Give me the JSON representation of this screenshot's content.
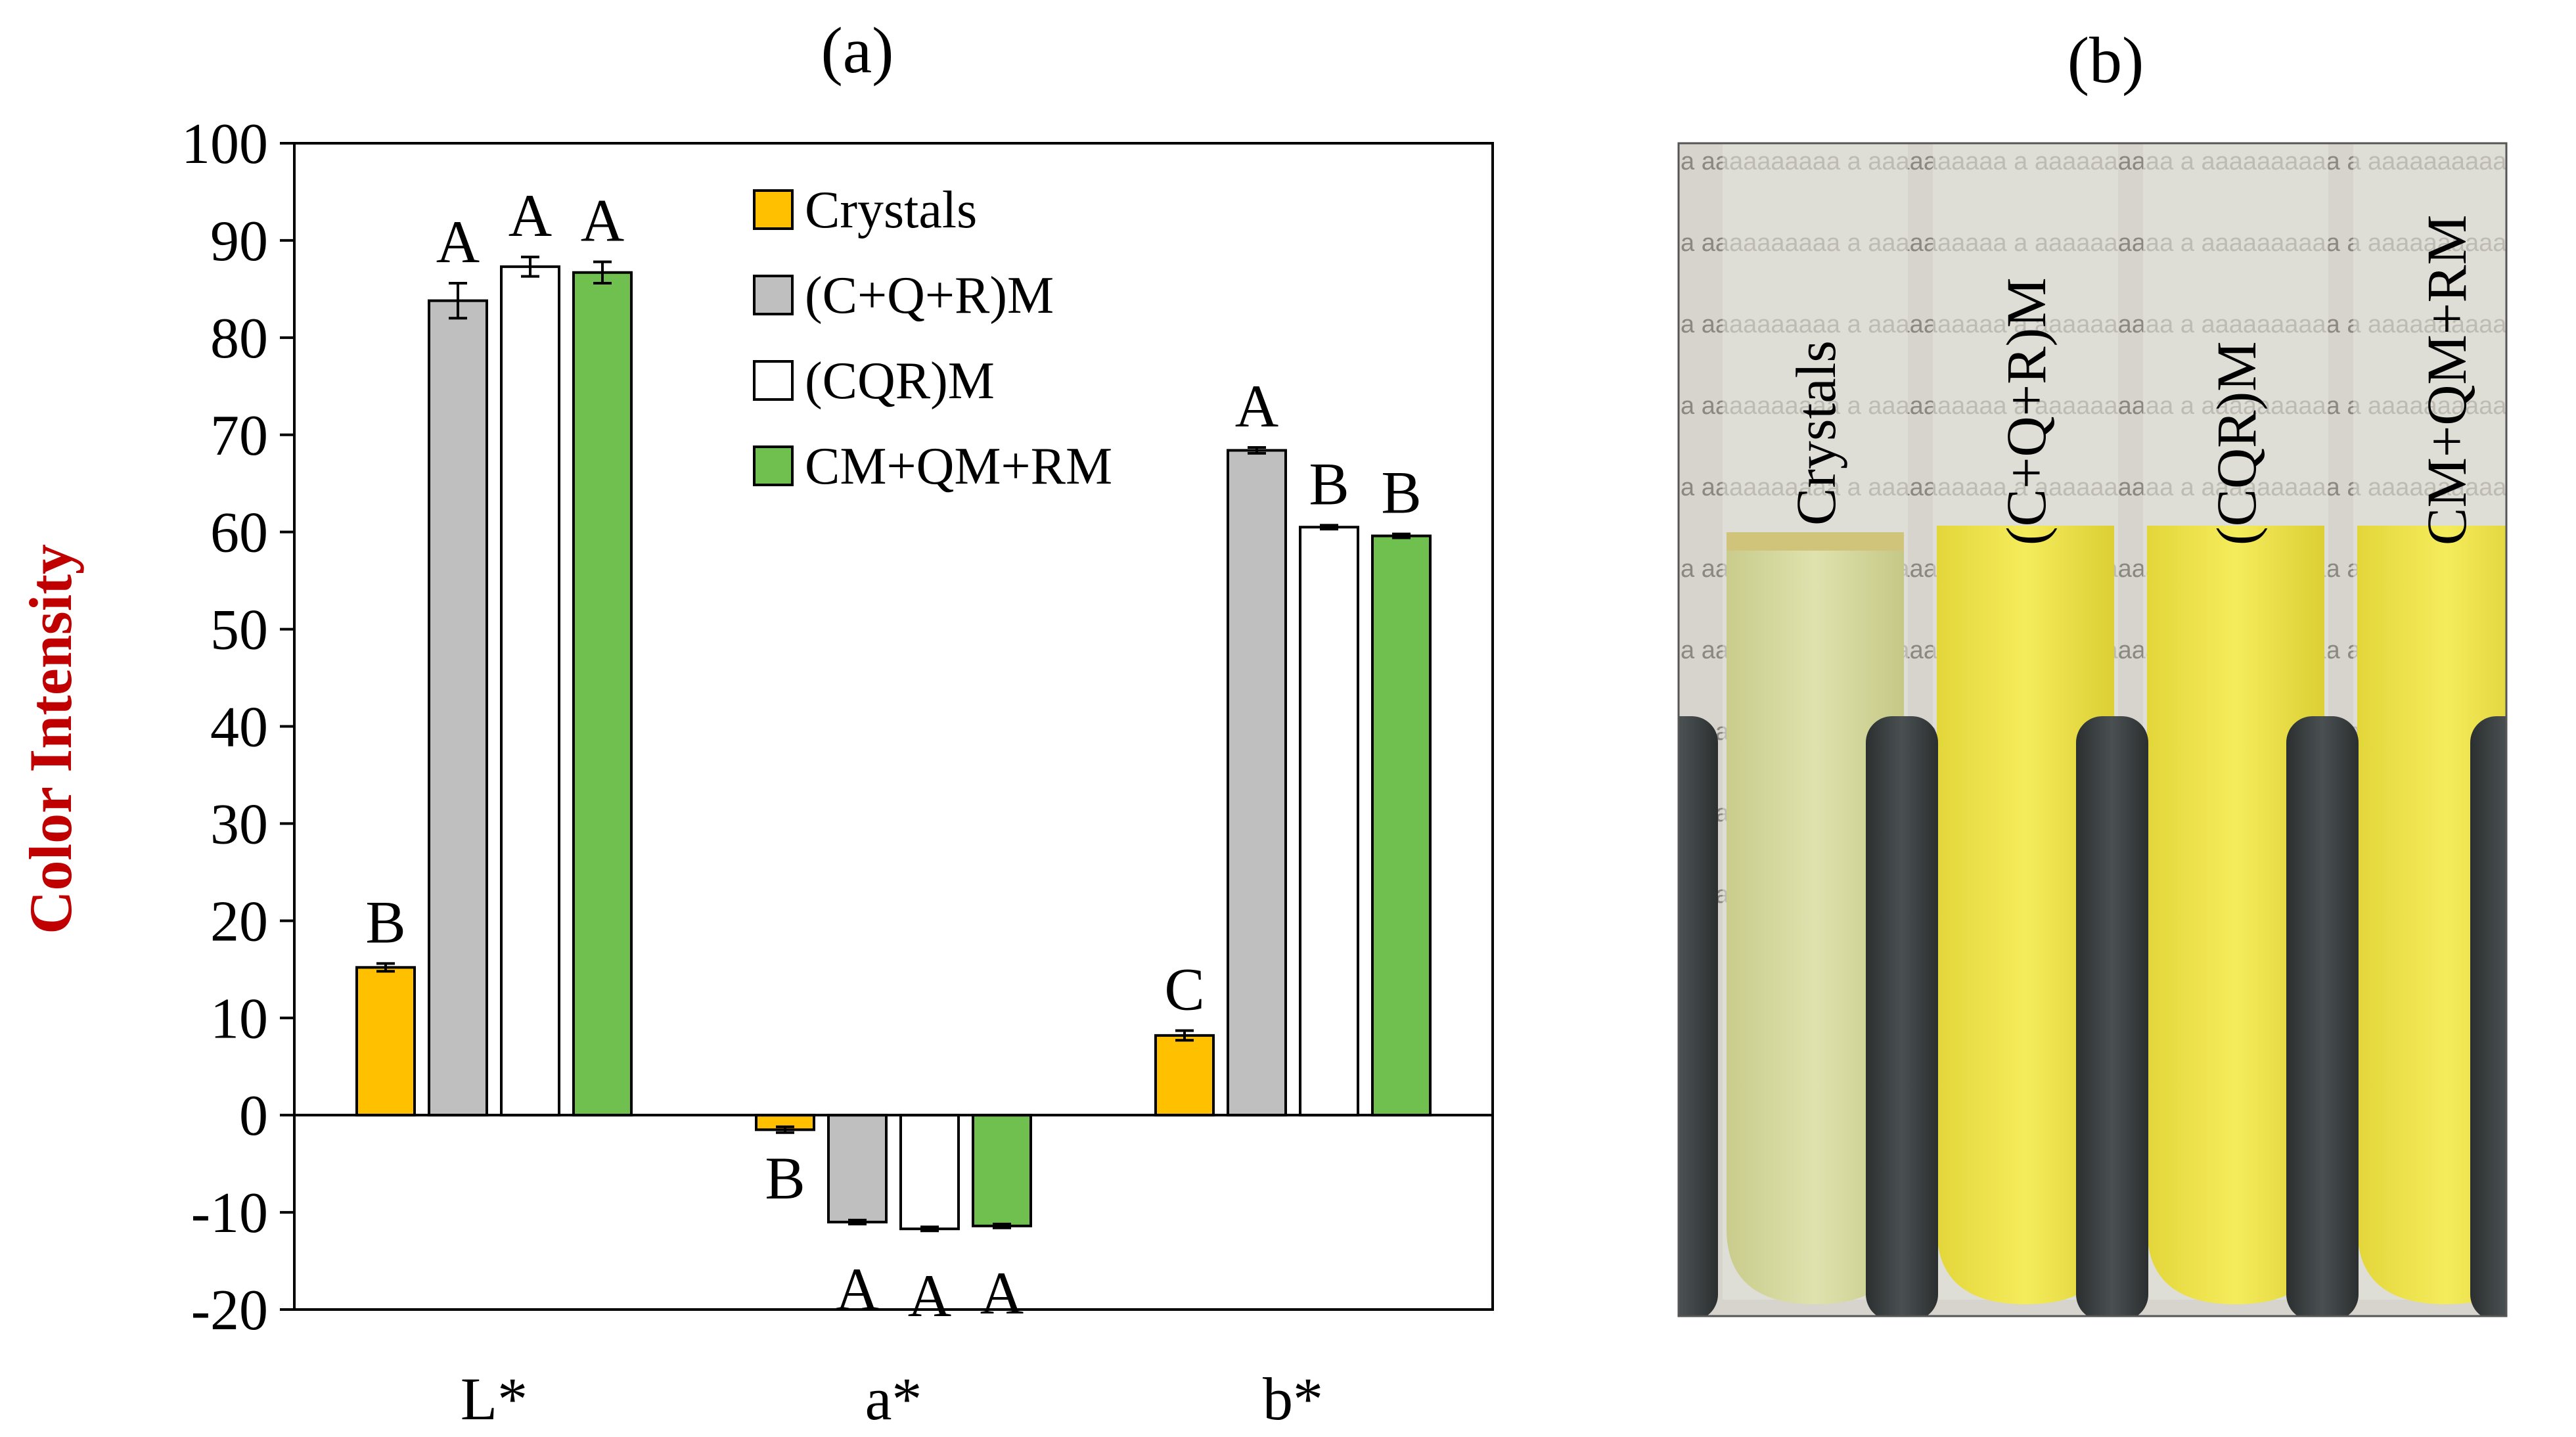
{
  "panel_a_label": "(a)",
  "panel_b_label": "(b)",
  "chart_data": {
    "type": "bar",
    "title": "",
    "ylabel": "Color Intensity",
    "xlabel": "",
    "ylim": [
      -20,
      100
    ],
    "yticks": [
      -20,
      -10,
      0,
      10,
      20,
      30,
      40,
      50,
      60,
      70,
      80,
      90,
      100
    ],
    "grid": false,
    "legend_position": "top-right",
    "categories": [
      "L*",
      "a*",
      "b*"
    ],
    "series": [
      {
        "name": "Crystals",
        "color": "#ffc000",
        "values": [
          15.2,
          -1.5,
          8.2
        ],
        "errors": [
          0.4,
          0.3,
          0.5
        ],
        "letters": [
          "B",
          "B",
          "C"
        ]
      },
      {
        "name": "(C+Q+R)M",
        "color": "#bfbfbf",
        "values": [
          83.8,
          -11.0,
          68.4
        ],
        "errors": [
          1.8,
          0.2,
          0.3
        ],
        "letters": [
          "A",
          "A",
          "A"
        ]
      },
      {
        "name": "(CQR)M",
        "color": "#ffffff",
        "values": [
          87.3,
          -11.7,
          60.5
        ],
        "errors": [
          1.0,
          0.2,
          0.2
        ],
        "letters": [
          "A",
          "A",
          "B"
        ]
      },
      {
        "name": "CM+QM+RM",
        "color": "#70c050",
        "values": [
          86.7,
          -11.4,
          59.6
        ],
        "errors": [
          1.1,
          0.2,
          0.2
        ],
        "letters": [
          "A",
          "A",
          "B"
        ]
      }
    ]
  },
  "photo": {
    "tube_labels": [
      "Crystals",
      "(C+Q+R)M",
      "(CQR)M",
      "CM+QM+RM"
    ],
    "background_text": "a aaaaaaaaaa"
  }
}
